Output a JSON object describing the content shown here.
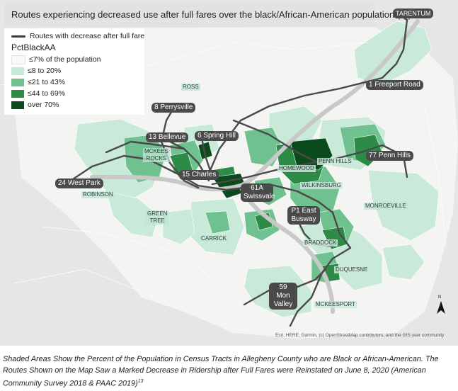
{
  "title": "Routes experiencing decreased use after full fares over the black/African-American population (%)",
  "legend": {
    "line_label": "Routes with decrease after full fare",
    "heading": "PctBlackAA",
    "classes": [
      {
        "label": "≤7% of the population",
        "color": "#f8faf9"
      },
      {
        "label": "≤8 to 20%",
        "color": "#c7e9da"
      },
      {
        "label": "≤21 to 43%",
        "color": "#6fc18f"
      },
      {
        "label": "≤44 to 69%",
        "color": "#2e8b47"
      },
      {
        "label": "over 70%",
        "color": "#0a4a1c"
      }
    ]
  },
  "routes": [
    {
      "id": "tarentum",
      "text": "TARENTUM",
      "kind": "place"
    },
    {
      "id": "r1",
      "text": "1 Freeport Road",
      "kind": "route"
    },
    {
      "id": "r8",
      "text": "8 Perrysville",
      "kind": "route"
    },
    {
      "id": "r13",
      "text": "13 Bellevue",
      "kind": "route"
    },
    {
      "id": "r6",
      "text": "6 Spring Hill",
      "kind": "route"
    },
    {
      "id": "r15",
      "text": "15 Charles",
      "kind": "route"
    },
    {
      "id": "r24",
      "text": "24 West Park",
      "kind": "route"
    },
    {
      "id": "r61a",
      "line1": "61A",
      "line2": "Swissvale",
      "kind": "route"
    },
    {
      "id": "p1",
      "line1": "P1 East",
      "line2": "Busway",
      "kind": "route"
    },
    {
      "id": "r77",
      "text": "77 Penn Hills",
      "kind": "route"
    },
    {
      "id": "r59",
      "line1": "59 Mon",
      "line2": "Valley",
      "kind": "route"
    }
  ],
  "places": {
    "ross": "ROSS",
    "mckees_rocks_1": "MCKEES",
    "mckees_rocks_2": "ROCKS",
    "robinson": "ROBINSON",
    "green_tree_1": "GREEN",
    "green_tree_2": "TREE",
    "carrick": "CARRICK",
    "homewood": "HOMEWOOD",
    "penn_hills": "PENN HILLS",
    "wilkinsburg": "WILKINSBURG",
    "monroeville": "MONROEVILLE",
    "braddock": "BRADDOCK",
    "duquesne": "DUQUESNE",
    "mckeesport": "MCKEESPORT"
  },
  "north_label": "N",
  "attribution": "Esri, HERE, Garmin, (c) OpenStreetMap contributors, and the GIS user community",
  "caption": {
    "text": "Shaded Areas Show the Percent of the Population in Census Tracts in Allegheny County who are Black or African-American. The Routes Shown on the Map Saw a Marked Decrease in Ridership after Full Fares were Reinstated on June 8, 2020 (American Community Survey 2018 & PAAC 2019)",
    "footnote": "13"
  }
}
